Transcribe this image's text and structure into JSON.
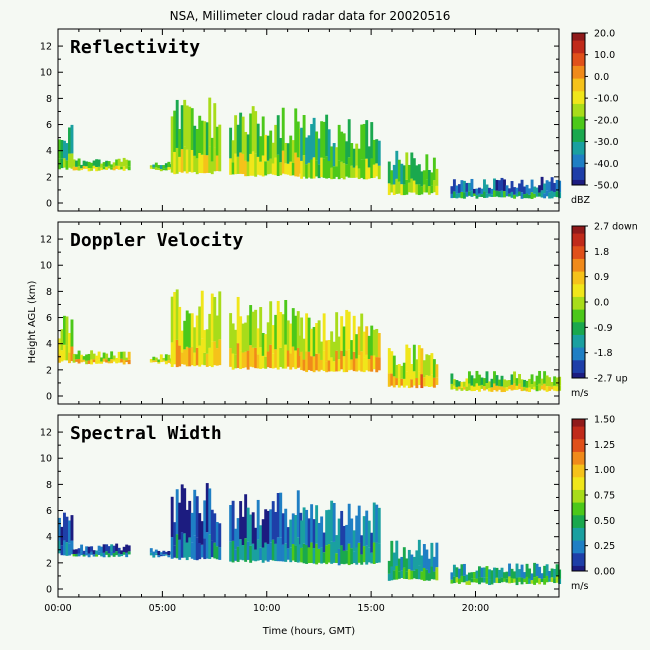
{
  "title": "NSA, Millimeter cloud radar data for 20020516",
  "xlabel": "Time (hours, GMT)",
  "ylabel": "Height AGL (km)",
  "colormap": [
    "#1c1c80",
    "#1e3fa8",
    "#1f7fc4",
    "#1aa0a0",
    "#1aa84e",
    "#4cc81a",
    "#a8dc1a",
    "#f0e61a",
    "#f5c21a",
    "#f08a1a",
    "#e0501a",
    "#c02a1a",
    "#901a1a"
  ],
  "chart_data": [
    {
      "type": "heatmap",
      "panel": "Reflectivity",
      "x_range_hours": [
        0,
        24
      ],
      "y_range_km": [
        0,
        13
      ],
      "xticks": [
        "00:00",
        "05:00",
        "10:00",
        "15:00",
        "20:00"
      ],
      "yticks": [
        "0",
        "2",
        "4",
        "6",
        "8",
        "10",
        "12"
      ],
      "colorbar": {
        "min": -50,
        "max": 20,
        "ticks": [
          "20.0",
          "10.0",
          "0.0",
          "-10.0",
          "-20.0",
          "-30.0",
          "-40.0",
          "-50.0"
        ],
        "unit": "dBZ"
      },
      "echo_regions": [
        {
          "t_start": 0.0,
          "t_end": 0.7,
          "base_km": 2.5,
          "top_km": 6.2,
          "typical_value": -25
        },
        {
          "t_start": 0.7,
          "t_end": 3.4,
          "base_km": 2.4,
          "top_km": 3.5,
          "typical_value": -15
        },
        {
          "t_start": 4.4,
          "t_end": 5.4,
          "base_km": 2.4,
          "top_km": 3.2,
          "typical_value": -20
        },
        {
          "t_start": 5.4,
          "t_end": 7.8,
          "base_km": 2.2,
          "top_km": 8.2,
          "typical_value": -15
        },
        {
          "t_start": 8.2,
          "t_end": 11.6,
          "base_km": 2.0,
          "top_km": 7.6,
          "typical_value": -15
        },
        {
          "t_start": 11.6,
          "t_end": 15.4,
          "base_km": 1.8,
          "top_km": 6.8,
          "typical_value": -20
        },
        {
          "t_start": 15.8,
          "t_end": 18.2,
          "base_km": 0.6,
          "top_km": 4.0,
          "typical_value": -20
        },
        {
          "t_start": 18.8,
          "t_end": 24.0,
          "base_km": 0.3,
          "top_km": 2.0,
          "typical_value": -35
        }
      ]
    },
    {
      "type": "heatmap",
      "panel": "Doppler Velocity",
      "x_range_hours": [
        0,
        24
      ],
      "y_range_km": [
        0,
        13
      ],
      "xticks": [
        "00:00",
        "05:00",
        "10:00",
        "15:00",
        "20:00"
      ],
      "yticks": [
        "0",
        "2",
        "4",
        "6",
        "8",
        "10",
        "12"
      ],
      "colorbar": {
        "min": -2.7,
        "max": 2.7,
        "ticks": [
          "2.7 down",
          "1.8",
          "0.9",
          "0.0",
          "-0.9",
          "-1.8",
          "-2.7 up"
        ],
        "unit": "m/s"
      },
      "echo_regions": [
        {
          "t_start": 0.0,
          "t_end": 0.7,
          "base_km": 2.5,
          "top_km": 6.2,
          "typical_value": 0.5
        },
        {
          "t_start": 0.7,
          "t_end": 3.4,
          "base_km": 2.4,
          "top_km": 3.5,
          "typical_value": 0.5
        },
        {
          "t_start": 4.4,
          "t_end": 5.4,
          "base_km": 2.4,
          "top_km": 3.2,
          "typical_value": 0.5
        },
        {
          "t_start": 5.4,
          "t_end": 7.8,
          "base_km": 2.2,
          "top_km": 8.2,
          "typical_value": 0.4
        },
        {
          "t_start": 8.2,
          "t_end": 11.6,
          "base_km": 2.0,
          "top_km": 7.6,
          "typical_value": 0.5
        },
        {
          "t_start": 11.6,
          "t_end": 15.4,
          "base_km": 1.8,
          "top_km": 6.8,
          "typical_value": 0.6
        },
        {
          "t_start": 15.8,
          "t_end": 18.2,
          "base_km": 0.6,
          "top_km": 4.0,
          "typical_value": 0.7
        },
        {
          "t_start": 18.8,
          "t_end": 24.0,
          "base_km": 0.3,
          "top_km": 2.0,
          "typical_value": 0.1
        }
      ]
    },
    {
      "type": "heatmap",
      "panel": "Spectral Width",
      "x_range_hours": [
        0,
        24
      ],
      "y_range_km": [
        0,
        13
      ],
      "xticks": [
        "00:00",
        "05:00",
        "10:00",
        "15:00",
        "20:00"
      ],
      "yticks": [
        "0",
        "2",
        "4",
        "6",
        "8",
        "10",
        "12"
      ],
      "colorbar": {
        "min": 0,
        "max": 1.5,
        "ticks": [
          "1.50",
          "1.25",
          "1.00",
          "0.75",
          "0.50",
          "0.25",
          "0.00"
        ],
        "unit": "m/s"
      },
      "echo_regions": [
        {
          "t_start": 0.0,
          "t_end": 0.7,
          "base_km": 2.5,
          "top_km": 6.2,
          "typical_value": 0.2
        },
        {
          "t_start": 0.7,
          "t_end": 3.4,
          "base_km": 2.4,
          "top_km": 3.5,
          "typical_value": 0.3
        },
        {
          "t_start": 4.4,
          "t_end": 5.4,
          "base_km": 2.4,
          "top_km": 3.2,
          "typical_value": 0.2
        },
        {
          "t_start": 5.4,
          "t_end": 7.8,
          "base_km": 2.2,
          "top_km": 8.2,
          "typical_value": 0.2
        },
        {
          "t_start": 8.2,
          "t_end": 11.6,
          "base_km": 2.0,
          "top_km": 7.6,
          "typical_value": 0.3
        },
        {
          "t_start": 11.6,
          "t_end": 15.4,
          "base_km": 1.8,
          "top_km": 6.8,
          "typical_value": 0.4
        },
        {
          "t_start": 15.8,
          "t_end": 18.2,
          "base_km": 0.6,
          "top_km": 4.0,
          "typical_value": 0.5
        },
        {
          "t_start": 18.8,
          "t_end": 24.0,
          "base_km": 0.3,
          "top_km": 2.0,
          "typical_value": 0.5
        }
      ]
    }
  ]
}
